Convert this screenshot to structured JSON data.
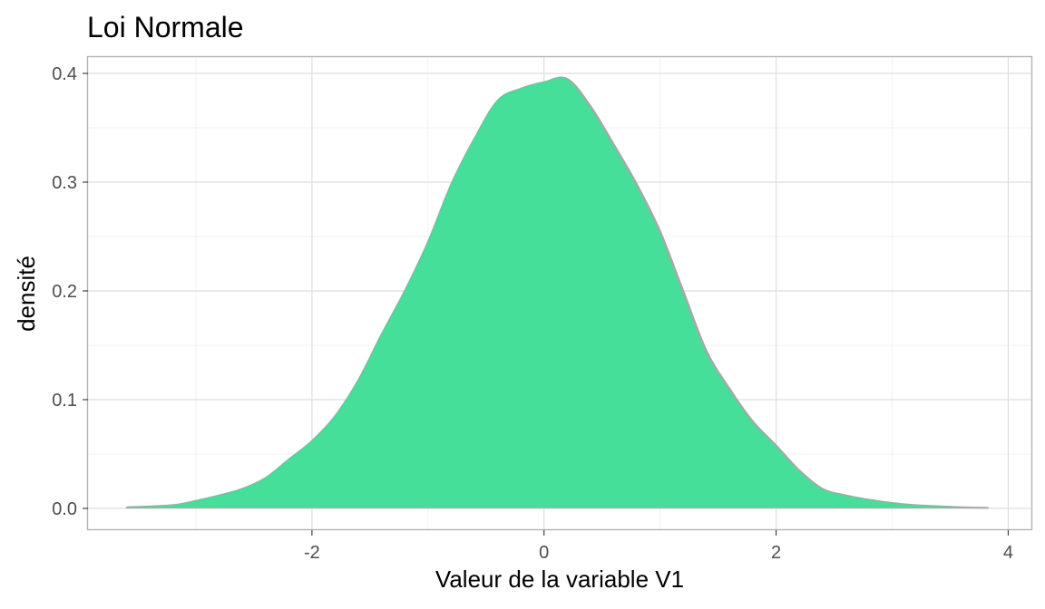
{
  "chart_data": {
    "type": "area",
    "title": "Loi Normale",
    "xlabel": "Valeur de la variable V1",
    "ylabel": "densité",
    "xlim": [
      -3.93,
      4.2
    ],
    "ylim": [
      -0.02,
      0.415
    ],
    "x_ticks": [
      -2,
      0,
      2,
      4
    ],
    "x_tick_labels": [
      "-2",
      "0",
      "2",
      "4"
    ],
    "y_ticks": [
      0.0,
      0.1,
      0.2,
      0.3,
      0.4
    ],
    "y_tick_labels": [
      "0.0",
      "0.1",
      "0.2",
      "0.3",
      "0.4"
    ],
    "grid": true,
    "legend": "none",
    "fill_color": "#45df9a",
    "line_color": "#a9a6a6",
    "series": [
      {
        "x": [
          -3.6,
          -3.2,
          -3.0,
          -2.8,
          -2.6,
          -2.4,
          -2.2,
          -2.0,
          -1.8,
          -1.6,
          -1.4,
          -1.2,
          -1.0,
          -0.8,
          -0.6,
          -0.4,
          -0.2,
          0.0,
          0.2,
          0.4,
          0.6,
          0.8,
          1.0,
          1.2,
          1.4,
          1.6,
          1.8,
          2.0,
          2.2,
          2.4,
          2.6,
          2.8,
          3.0,
          3.2,
          3.4,
          3.6,
          3.83
        ],
        "y": [
          0.001,
          0.003,
          0.007,
          0.012,
          0.018,
          0.028,
          0.045,
          0.062,
          0.085,
          0.118,
          0.16,
          0.2,
          0.245,
          0.298,
          0.34,
          0.375,
          0.386,
          0.392,
          0.395,
          0.37,
          0.335,
          0.298,
          0.255,
          0.2,
          0.145,
          0.11,
          0.08,
          0.058,
          0.035,
          0.018,
          0.012,
          0.008,
          0.005,
          0.003,
          0.002,
          0.001,
          0.0005
        ]
      }
    ]
  }
}
